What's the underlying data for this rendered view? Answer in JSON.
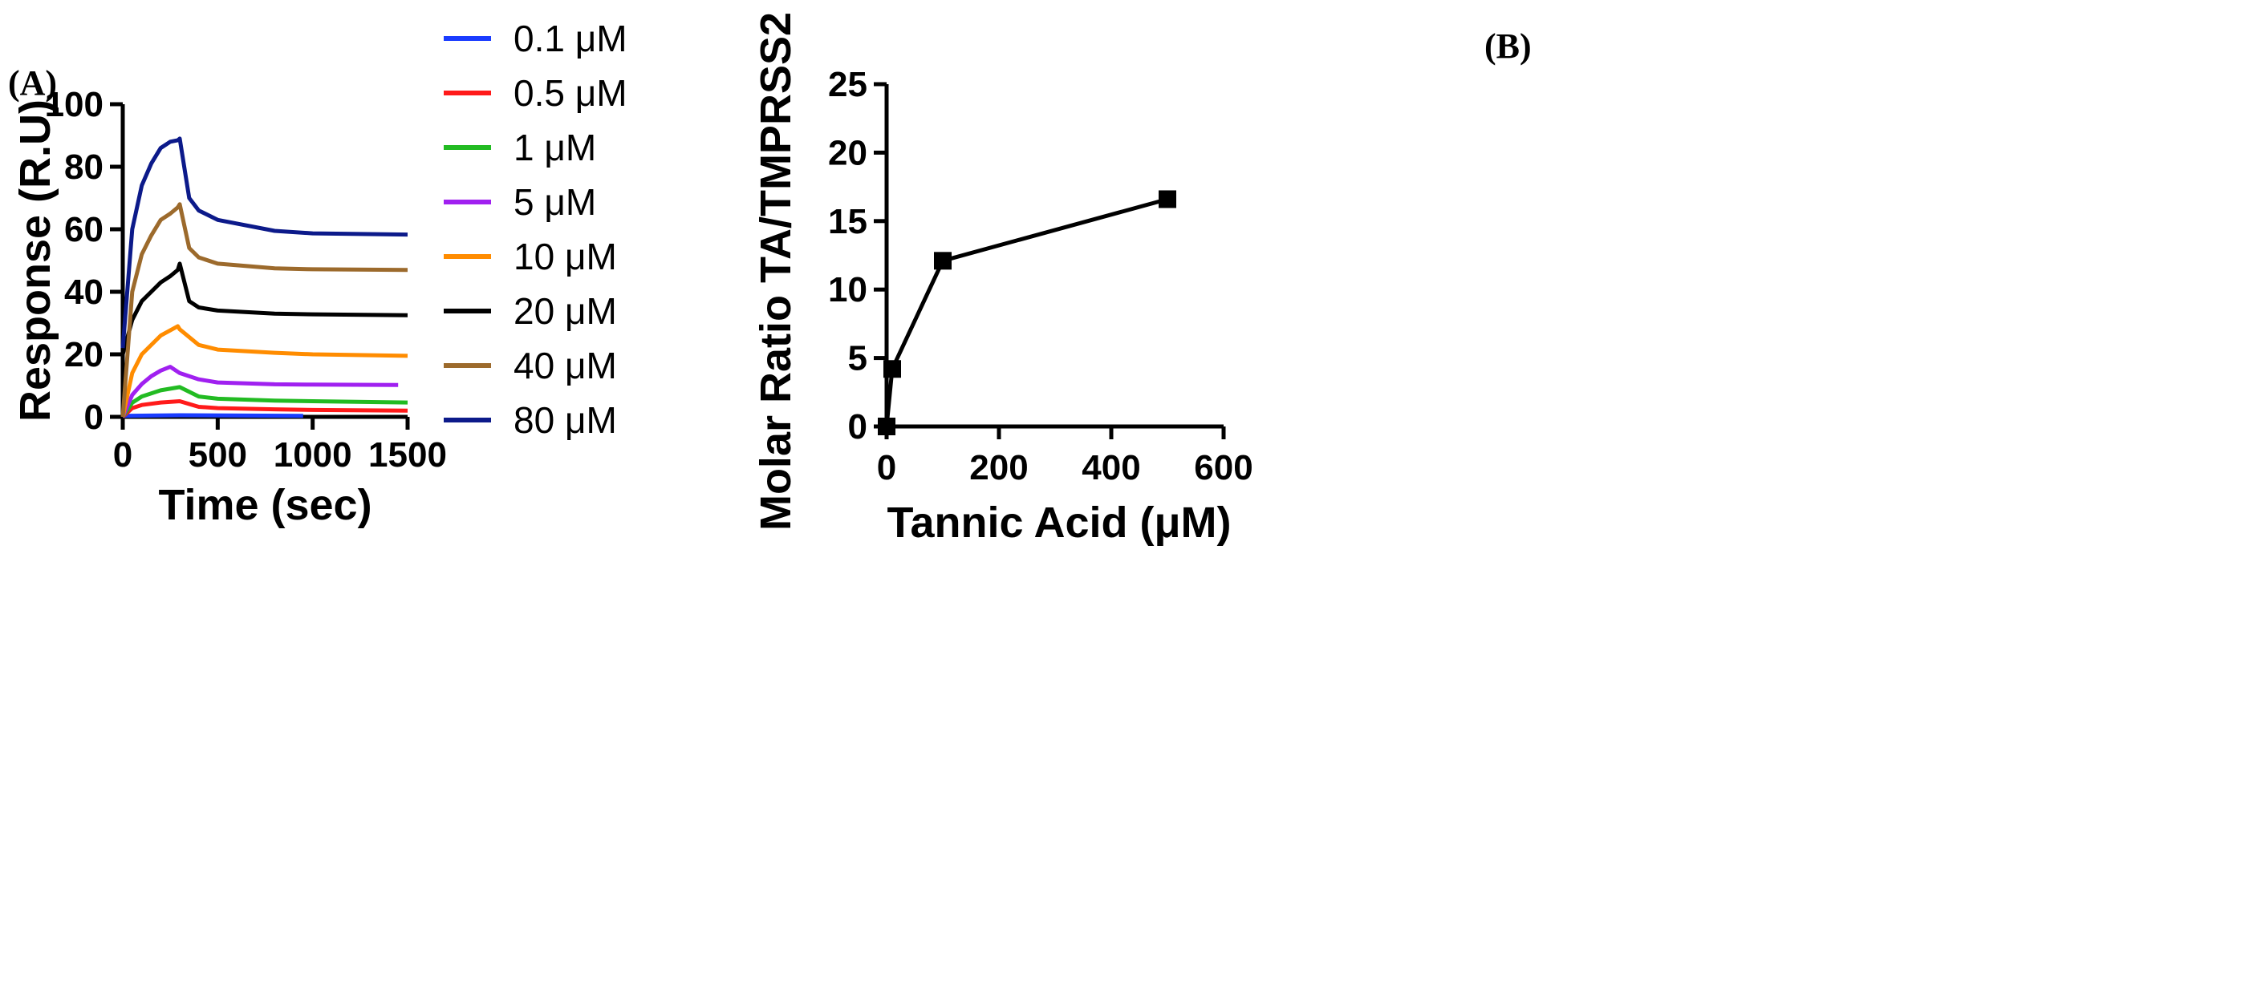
{
  "chart_data": [
    {
      "type": "line",
      "panel_label": "(A)",
      "title": "",
      "xlabel": "Time (sec)",
      "ylabel": "Response (R.U)",
      "xlim": [
        0,
        1500
      ],
      "ylim": [
        0,
        100
      ],
      "xticks": [
        0,
        500,
        1000,
        1500
      ],
      "yticks": [
        0,
        20,
        40,
        60,
        80,
        100
      ],
      "grid": false,
      "legend_position": "right",
      "association_end_sec": 300,
      "series": [
        {
          "name": "0.1 μM",
          "color": "#1a3cff",
          "end_time": 950,
          "x": [
            0,
            300,
            950
          ],
          "y": [
            0.3,
            0.5,
            0.3
          ]
        },
        {
          "name": "0.5 μM",
          "color": "#ff1a1a",
          "end_time": 1500,
          "x": [
            0,
            50,
            100,
            200,
            300,
            400,
            500,
            800,
            1000,
            1500
          ],
          "y": [
            0,
            2.8,
            3.8,
            4.6,
            5.0,
            3.2,
            2.8,
            2.4,
            2.2,
            2.0
          ]
        },
        {
          "name": "1 μM",
          "color": "#22bb22",
          "end_time": 1500,
          "x": [
            0,
            50,
            100,
            200,
            300,
            400,
            500,
            800,
            1000,
            1500
          ],
          "y": [
            0,
            4.5,
            6.5,
            8.5,
            9.5,
            6.5,
            5.8,
            5.2,
            5.0,
            4.6
          ]
        },
        {
          "name": "5 μM",
          "color": "#a020f0",
          "end_time": 1450,
          "x": [
            0,
            50,
            100,
            150,
            200,
            250,
            300,
            400,
            500,
            800,
            1000,
            1450
          ],
          "y": [
            0,
            7,
            10.5,
            13,
            14.8,
            16,
            14,
            12,
            11,
            10.4,
            10.3,
            10.2
          ]
        },
        {
          "name": "10 μM",
          "color": "#ff8c00",
          "end_time": 1500,
          "x": [
            0,
            50,
            100,
            200,
            290,
            300,
            400,
            500,
            800,
            1000,
            1500
          ],
          "y": [
            0,
            14,
            20,
            26,
            29,
            28,
            23,
            21.5,
            20.5,
            20,
            19.5
          ]
        },
        {
          "name": "20 μM",
          "color": "#000000",
          "end_time": 1500,
          "x": [
            0,
            50,
            100,
            150,
            200,
            250,
            290,
            300,
            350,
            400,
            500,
            800,
            1000,
            1500
          ],
          "y": [
            20,
            31,
            37,
            40,
            43,
            45,
            47,
            49,
            37,
            35,
            34,
            33,
            32.8,
            32.5
          ]
        },
        {
          "name": "40 μM",
          "color": "#9c6a2c",
          "end_time": 1500,
          "x": [
            0,
            50,
            100,
            150,
            200,
            250,
            290,
            300,
            350,
            400,
            500,
            800,
            1000,
            1500
          ],
          "y": [
            0,
            40,
            52,
            58,
            63,
            65,
            67,
            68,
            54,
            51,
            49,
            47.5,
            47.2,
            47
          ]
        },
        {
          "name": "80 μM",
          "color": "#0c1a8a",
          "end_time": 1500,
          "x": [
            0,
            50,
            100,
            150,
            200,
            250,
            290,
            300,
            350,
            400,
            500,
            800,
            1000,
            1500
          ],
          "y": [
            22,
            60,
            74,
            81,
            86,
            88,
            88.5,
            89,
            70,
            66,
            63,
            59.5,
            58.7,
            58.3
          ]
        }
      ]
    },
    {
      "type": "line",
      "panel_label": "(B)",
      "title": "",
      "xlabel": "Tannic Acid (μM)",
      "ylabel": "Molar Ratio TA/TMPRSS2",
      "xlim": [
        0,
        600
      ],
      "ylim": [
        0,
        25
      ],
      "xticks": [
        0,
        200,
        400,
        600
      ],
      "yticks": [
        0,
        5,
        10,
        15,
        20,
        25
      ],
      "grid": false,
      "marker": "square",
      "series": [
        {
          "name": "TA/TMPRSS2",
          "color": "#000000",
          "x": [
            0,
            10,
            100,
            500
          ],
          "y": [
            0,
            4.2,
            12.1,
            16.6
          ]
        }
      ]
    }
  ]
}
